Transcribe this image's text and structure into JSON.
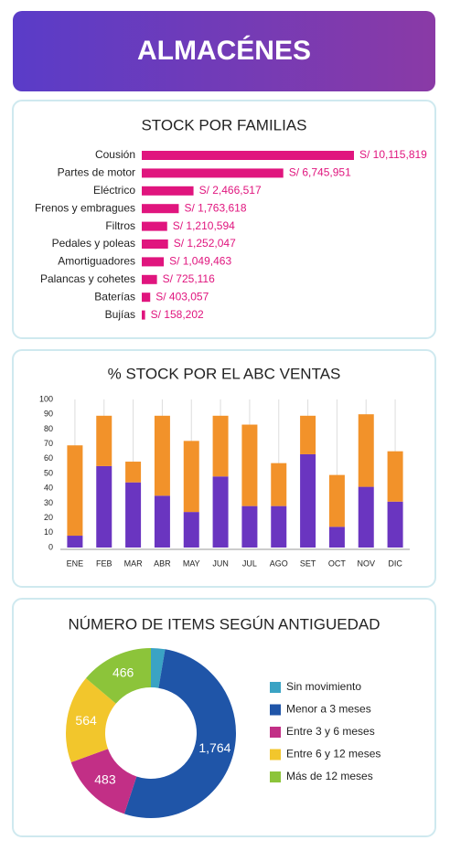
{
  "header": {
    "title": "ALMACÉNES"
  },
  "chart_data": [
    {
      "type": "hbar",
      "title": "STOCK POR FAMILIAS",
      "color": "#e0157e",
      "categories": [
        "Cousión",
        "Partes de motor",
        "Eléctrico",
        "Frenos y embragues",
        "Filtros",
        "Pedales y poleas",
        "Amortiguadores",
        "Palancas y cohetes",
        "Baterías",
        "Bujías"
      ],
      "values": [
        10115819,
        6745951,
        2466517,
        1763618,
        1210594,
        1252047,
        1049463,
        725116,
        403057,
        158202
      ],
      "value_labels": [
        "S/ 10,115,819",
        "S/ 6,745,951",
        "S/ 2,466,517",
        "S/ 1,763,618",
        "S/ 1,210,594",
        "S/ 1,252,047",
        "S/ 1,049,463",
        "S/ 725,116",
        "S/ 403,057",
        "S/ 158,202"
      ]
    },
    {
      "type": "stacked-bar",
      "title": "% STOCK POR EL ABC VENTAS",
      "categories": [
        "ENE",
        "FEB",
        "MAR",
        "ABR",
        "MAY",
        "JUN",
        "JUL",
        "AGO",
        "SET",
        "OCT",
        "NOV",
        "DIC"
      ],
      "series": [
        {
          "color": "#6a35c0",
          "values": [
            8,
            55,
            44,
            35,
            24,
            48,
            28,
            28,
            63,
            14,
            41,
            31
          ]
        },
        {
          "color": "#f2922a",
          "values": [
            61,
            34,
            14,
            54,
            48,
            41,
            55,
            29,
            26,
            35,
            49,
            34
          ]
        }
      ],
      "ylim": [
        0,
        100
      ],
      "yticks": [
        0,
        10,
        20,
        30,
        40,
        50,
        60,
        70,
        80,
        90,
        100
      ]
    },
    {
      "type": "donut",
      "title": "NÚMERO DE ITEMS SEGÚN ANTIGUEDAD",
      "categories": [
        "Sin movimiento",
        "Menor a 3 meses",
        "Entre 3 y 6 meses",
        "Entre 6 y 12 meses",
        "Más de 12 meses"
      ],
      "values": [
        90,
        1764,
        483,
        564,
        466
      ],
      "value_labels": [
        null,
        "1,764",
        "483",
        "564",
        "466"
      ],
      "colors": [
        "#3aa3c4",
        "#1f55a8",
        "#c22f86",
        "#f2c62c",
        "#8cc43a"
      ]
    }
  ]
}
